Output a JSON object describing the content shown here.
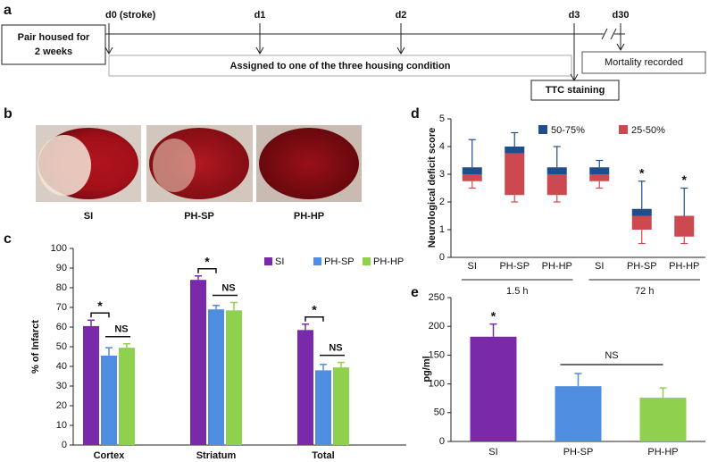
{
  "timeline": {
    "panel": "a",
    "start_box": [
      "Pair housed for",
      "2 weeks"
    ],
    "days": [
      "d0 (stroke)",
      "d1",
      "d2",
      "d3",
      "d30"
    ],
    "housing": "Assigned to one of the three housing condition",
    "ttc": "TTC staining",
    "mortality": "Mortality recorded"
  },
  "images": {
    "panel": "b",
    "labels": [
      "SI",
      "PH-SP",
      "PH-HP"
    ]
  },
  "chart_data": [
    {
      "type": "bar",
      "panel": "c",
      "ylabel": "% of Infarct",
      "categories": [
        "Cortex",
        "Striatum",
        "Total"
      ],
      "series": [
        {
          "name": "SI",
          "color": "#7a2aa8",
          "values": [
            60.5,
            84,
            58.5
          ],
          "errors": [
            3,
            2,
            3
          ]
        },
        {
          "name": "PH-SP",
          "color": "#4f8de0",
          "values": [
            45.5,
            69,
            38
          ],
          "errors": [
            4,
            2,
            3
          ]
        },
        {
          "name": "PH-HP",
          "color": "#8fd14f",
          "values": [
            49.5,
            68.5,
            39.5
          ],
          "errors": [
            2,
            4,
            2.5
          ]
        }
      ],
      "significance": [
        [
          "*",
          "NS"
        ],
        [
          "*",
          "NS"
        ],
        [
          "*",
          "NS"
        ]
      ],
      "ylim": [
        0,
        100
      ],
      "yticks": [
        0,
        10,
        20,
        30,
        40,
        50,
        60,
        70,
        80,
        90,
        100
      ],
      "legend": "top-right"
    },
    {
      "type": "box",
      "panel": "d",
      "ylabel": "Neurological deficit score",
      "categories": [
        "SI",
        "PH-SP",
        "PH-HP",
        "SI",
        "PH-SP",
        "PH-HP"
      ],
      "group_labels": [
        "1.5 h",
        "72 h"
      ],
      "boxes": [
        {
          "min": 2.5,
          "q1": 2.75,
          "median": 3,
          "q3": 3.25,
          "max": 4.25
        },
        {
          "min": 2,
          "q1": 2.25,
          "median": 3.75,
          "q3": 4,
          "max": 4.5
        },
        {
          "min": 2,
          "q1": 2.25,
          "median": 3,
          "q3": 3.25,
          "max": 4
        },
        {
          "min": 2.5,
          "q1": 2.75,
          "median": 3,
          "q3": 3.25,
          "max": 3.5
        },
        {
          "min": 0.5,
          "q1": 1,
          "median": 1.5,
          "q3": 1.75,
          "max": 2.75
        },
        {
          "min": 0.5,
          "q1": 0.75,
          "median": 1.5,
          "q3": 1.5,
          "max": 2.5
        }
      ],
      "annotations": [
        null,
        null,
        null,
        null,
        "*",
        "*"
      ],
      "legend_items": [
        {
          "name": "50-75%",
          "color": "#1f4e8c"
        },
        {
          "name": "25-50%",
          "color": "#cc4a4f"
        }
      ],
      "ylim": [
        0,
        5
      ],
      "yticks": [
        0,
        1,
        2,
        3,
        4,
        5
      ]
    },
    {
      "type": "bar",
      "panel": "e",
      "ylabel": "pg/ml",
      "categories": [
        "SI",
        "PH-SP",
        "PH-HP"
      ],
      "values": [
        182,
        96,
        76
      ],
      "errors": [
        22,
        22,
        17
      ],
      "colors": [
        "#7a2aa8",
        "#4f8de0",
        "#8fd14f"
      ],
      "star": "*",
      "bracket": "NS",
      "ylim": [
        0,
        250
      ],
      "yticks": [
        0,
        50,
        100,
        150,
        200,
        250
      ]
    }
  ]
}
